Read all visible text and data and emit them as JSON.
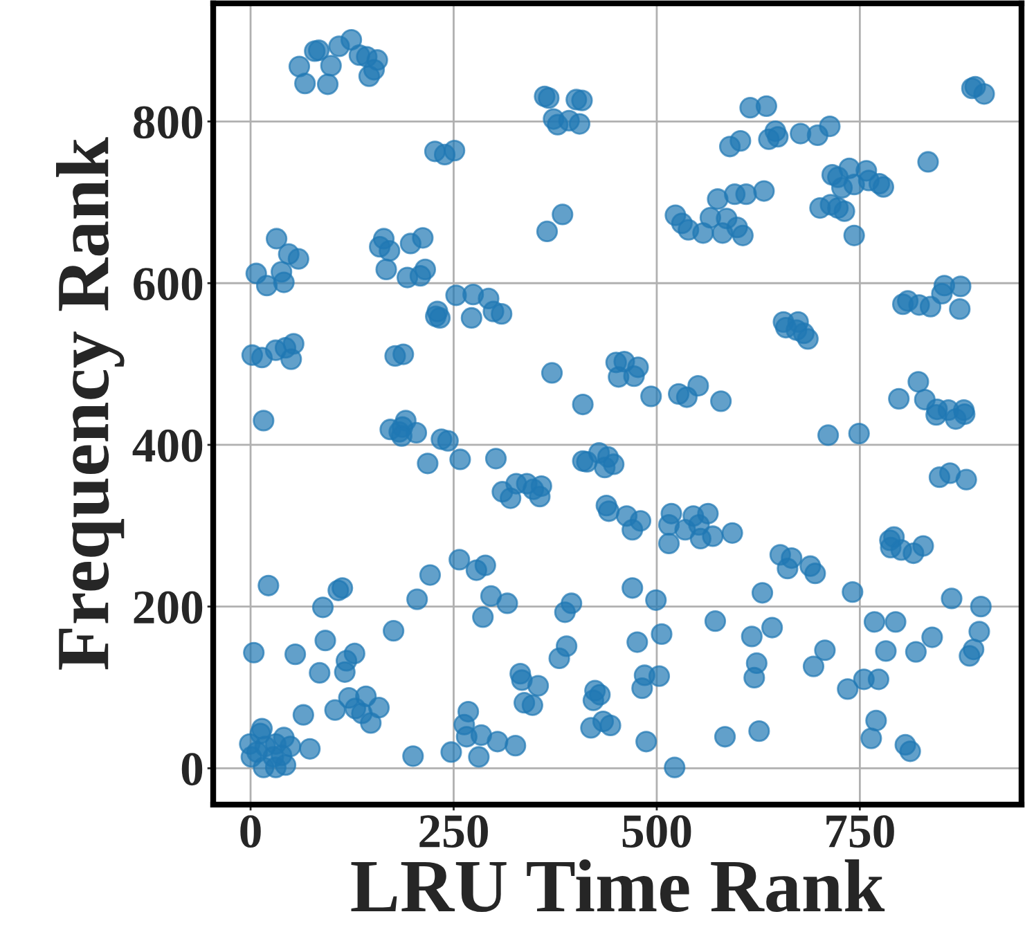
{
  "chart_data": {
    "type": "scatter",
    "xlabel": "LRU Time Rank",
    "ylabel": "Frequency Rank",
    "xlim": [
      -46,
      949
    ],
    "ylim": [
      -45,
      946
    ],
    "xticks": [
      0,
      250,
      500,
      750
    ],
    "yticks": [
      0,
      200,
      400,
      600,
      800
    ],
    "grid": true,
    "marker": "circle",
    "legend": false,
    "series": [
      {
        "color": "#1f77b4",
        "x": [
          60,
          67,
          79,
          84,
          99,
          95,
          109,
          124,
          134,
          143,
          146,
          156,
          152,
          362,
          367,
          373,
          378,
          392,
          401,
          408,
          405,
          227,
          239,
          251,
          365,
          384,
          32,
          47,
          59,
          7,
          20,
          41,
          38,
          164,
          159,
          171,
          167,
          197,
          212,
          193,
          209,
          215,
          253,
          274,
          293,
          299,
          309,
          272,
          228,
          233,
          230,
          2,
          14,
          31,
          43,
          53,
          50,
          178,
          188,
          16,
          371,
          409,
          172,
          183,
          187,
          191,
          204,
          186,
          235,
          243,
          218,
          258,
          302,
          310,
          320,
          327,
          340,
          358,
          356,
          348,
          409,
          414,
          429,
          440,
          436,
          447,
          438,
          441,
          463,
          470,
          480,
          518,
          515,
          535,
          545,
          552,
          563,
          569,
          554,
          593,
          515,
          450,
          460,
          453,
          477,
          472,
          493,
          527,
          537,
          551,
          579,
          523,
          531,
          539,
          557,
          566,
          575,
          586,
          581,
          599,
          606,
          596,
          610,
          632,
          615,
          635,
          590,
          603,
          638,
          646,
          649,
          677,
          698,
          713,
          834,
          888,
          903,
          892,
          716,
          737,
          723,
          758,
          743,
          761,
          779,
          774,
          728,
          701,
          723,
          731,
          714,
          743,
          854,
          874,
          851,
          803,
          809,
          823,
          837,
          873,
          656,
          674,
          659,
          672,
          681,
          686,
          822,
          798,
          830,
          845,
          878,
          859,
          844,
          868,
          879,
          848,
          861,
          881,
          787,
          792,
          788,
          801,
          816,
          828,
          652,
          666,
          661,
          689,
          695,
          711,
          749,
          630,
          741,
          863,
          899,
          470,
          499,
          572,
          617,
          642,
          506,
          476,
          768,
          794,
          839,
          782,
          819,
          897,
          890,
          885,
          707,
          693,
          623,
          620,
          485,
          503,
          482,
          755,
          773,
          735,
          770,
          764,
          806,
          812,
          487,
          584,
          626,
          522,
          22,
          89,
          108,
          113,
          205,
          221,
          257,
          278,
          289,
          296,
          316,
          286,
          387,
          395,
          176,
          4,
          55,
          92,
          85,
          128,
          118,
          116,
          389,
          380,
          332,
          334,
          354,
          337,
          347,
          424,
          430,
          422,
          419,
          434,
          443,
          65,
          104,
          121,
          142,
          129,
          137,
          158,
          148,
          73,
          268,
          263,
          266,
          284,
          304,
          326,
          281,
          247,
          200,
          14,
          12,
          -1,
          1,
          18,
          31,
          41,
          49,
          16,
          31,
          43,
          28,
          8,
          38
        ],
        "values": [
          868,
          847,
          887,
          888,
          869,
          846,
          893,
          901,
          882,
          880,
          856,
          876,
          864,
          831,
          829,
          803,
          796,
          801,
          827,
          826,
          797,
          763,
          759,
          764,
          664,
          685,
          655,
          636,
          630,
          612,
          597,
          601,
          614,
          655,
          645,
          640,
          617,
          649,
          656,
          607,
          609,
          617,
          585,
          586,
          581,
          565,
          562,
          557,
          559,
          557,
          565,
          511,
          508,
          517,
          520,
          525,
          506,
          510,
          512,
          430,
          489,
          450,
          419,
          416,
          422,
          430,
          415,
          411,
          407,
          405,
          377,
          382,
          383,
          342,
          334,
          352,
          352,
          349,
          336,
          345,
          380,
          379,
          390,
          385,
          372,
          376,
          325,
          318,
          312,
          295,
          306,
          315,
          301,
          295,
          312,
          301,
          315,
          287,
          284,
          291,
          278,
          502,
          503,
          484,
          496,
          485,
          460,
          463,
          459,
          473,
          454,
          684,
          674,
          666,
          662,
          681,
          704,
          680,
          662,
          669,
          659,
          710,
          710,
          714,
          817,
          819,
          769,
          776,
          778,
          788,
          781,
          785,
          783,
          794,
          750,
          841,
          834,
          843,
          734,
          742,
          731,
          739,
          722,
          727,
          719,
          723,
          718,
          693,
          693,
          689,
          697,
          659,
          597,
          596,
          587,
          574,
          578,
          573,
          571,
          568,
          552,
          552,
          545,
          542,
          538,
          531,
          478,
          457,
          456,
          444,
          443,
          443,
          437,
          432,
          438,
          360,
          365,
          357,
          282,
          286,
          273,
          270,
          266,
          275,
          264,
          260,
          247,
          250,
          241,
          412,
          414,
          217,
          218,
          210,
          200,
          223,
          208,
          182,
          163,
          174,
          166,
          156,
          181,
          181,
          162,
          145,
          144,
          169,
          147,
          139,
          146,
          126,
          130,
          112,
          115,
          114,
          99,
          110,
          110,
          98,
          59,
          37,
          29,
          21,
          33,
          39,
          46,
          1,
          226,
          199,
          220,
          223,
          209,
          239,
          258,
          245,
          251,
          213,
          204,
          187,
          193,
          204,
          170,
          143,
          141,
          158,
          118,
          142,
          133,
          119,
          151,
          136,
          117,
          109,
          102,
          81,
          78,
          96,
          91,
          84,
          50,
          58,
          53,
          66,
          72,
          87,
          89,
          74,
          68,
          75,
          56,
          24,
          70,
          54,
          39,
          41,
          33,
          28,
          14,
          20,
          15,
          49,
          43,
          30,
          14,
          27,
          30,
          38,
          27,
          1,
          1,
          4,
          14,
          20,
          16
        ]
      }
    ]
  }
}
